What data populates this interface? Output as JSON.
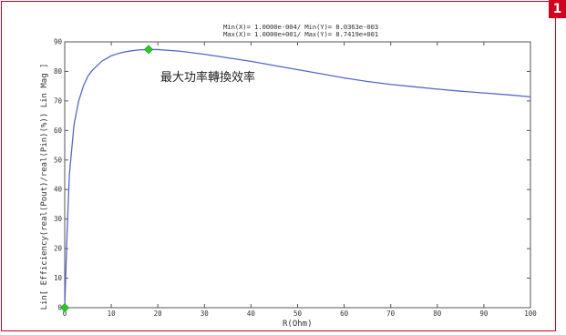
{
  "badge": "1",
  "chart_data": {
    "type": "line",
    "title": "",
    "minmax_line1": "Min(X)= 1.0000e-004/ Min(Y)= 8.0363e-003",
    "minmax_line2": "Max(X)= 1.0000e+001/ Max(Y)= 8.7419e+001",
    "annotation": "最大功率轉換效率",
    "xlabel": "R(Ohm)",
    "ylabel": "Lin[ Efficiency(real(Pout)/real(Pin)(%)) Lin Mag ]",
    "xlim": [
      0,
      100
    ],
    "ylim": [
      0,
      90
    ],
    "x_ticks": [
      0,
      10,
      20,
      30,
      40,
      50,
      60,
      70,
      80,
      90,
      100
    ],
    "y_ticks": [
      0,
      10,
      20,
      30,
      40,
      50,
      60,
      70,
      80,
      90
    ],
    "grid": false,
    "series": [
      {
        "color": "#5566cc",
        "x": [
          0,
          0.5,
          1,
          2,
          3,
          4,
          5,
          6,
          8,
          10,
          12,
          14,
          16,
          18,
          20,
          25,
          30,
          35,
          40,
          45,
          50,
          55,
          60,
          65,
          70,
          75,
          80,
          85,
          90,
          95,
          100
        ],
        "y": [
          0.008,
          25,
          45,
          62,
          70,
          75,
          78.5,
          80.5,
          83.5,
          85.3,
          86.3,
          86.9,
          87.3,
          87.4,
          87.4,
          86.8,
          85.8,
          84.6,
          83.4,
          82,
          80.6,
          79.2,
          77.8,
          76.6,
          75.6,
          74.8,
          74,
          73.3,
          72.7,
          72.1,
          71.4
        ]
      }
    ],
    "markers": [
      {
        "x": 0,
        "y": 0.008,
        "color": "#22cc22"
      },
      {
        "x": 18,
        "y": 87.419,
        "color": "#22cc22"
      }
    ]
  }
}
